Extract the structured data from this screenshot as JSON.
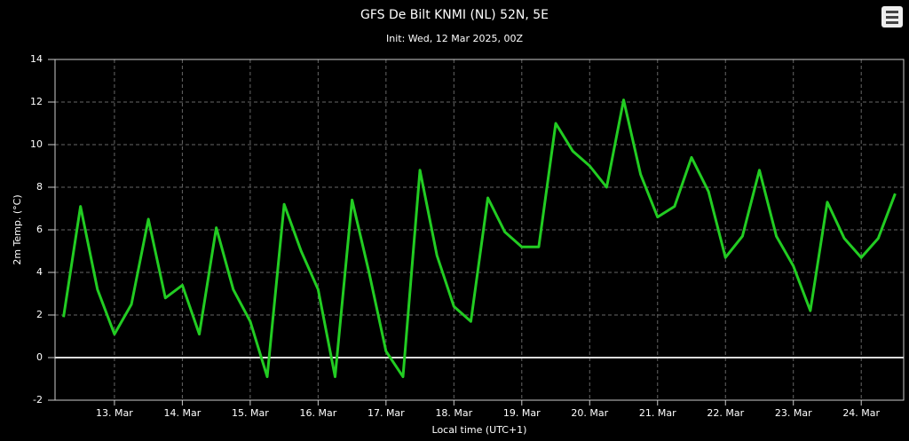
{
  "chart_data": {
    "type": "line",
    "title": "GFS De Bilt KNMI (NL) 52N, 5E",
    "subtitle": "Init: Wed, 12 Mar 2025, 00Z",
    "x_label": "Local time (UTC+1)",
    "y_label": "2m Temp. (°C)",
    "categories": [
      null,
      null,
      null,
      "13. Mar",
      null,
      null,
      null,
      "14. Mar",
      null,
      null,
      null,
      "15. Mar",
      null,
      null,
      null,
      "16. Mar",
      null,
      null,
      null,
      "17. Mar",
      null,
      null,
      null,
      "18. Mar",
      null,
      null,
      null,
      "19. Mar",
      null,
      null,
      null,
      "20. Mar",
      null,
      null,
      null,
      "21. Mar",
      null,
      null,
      null,
      "22. Mar",
      null,
      null,
      null,
      "23. Mar",
      null,
      null,
      null,
      "24. Mar",
      null,
      null
    ],
    "series": [
      {
        "name": "2m Temp.",
        "color": "#22cc22",
        "values": [
          1.9,
          7.1,
          3.2,
          1.1,
          2.5,
          6.5,
          2.8,
          3.4,
          1.1,
          6.1,
          3.2,
          1.7,
          -0.9,
          7.2,
          5.0,
          3.2,
          -0.9,
          7.4,
          4.0,
          0.3,
          -0.9,
          8.8,
          4.8,
          2.4,
          1.7,
          7.5,
          5.9,
          5.2,
          5.2,
          11.0,
          9.7,
          9.0,
          8.0,
          12.1,
          8.6,
          6.6,
          7.1,
          9.4,
          7.8,
          4.7,
          5.7,
          8.8,
          5.7,
          4.3,
          2.2,
          7.3,
          5.6,
          4.7,
          5.6,
          7.7
        ]
      }
    ],
    "ylim": [
      -2,
      14
    ],
    "yticks": [
      -2,
      0,
      2,
      4,
      6,
      8,
      10,
      12,
      14
    ],
    "grid": true
  }
}
